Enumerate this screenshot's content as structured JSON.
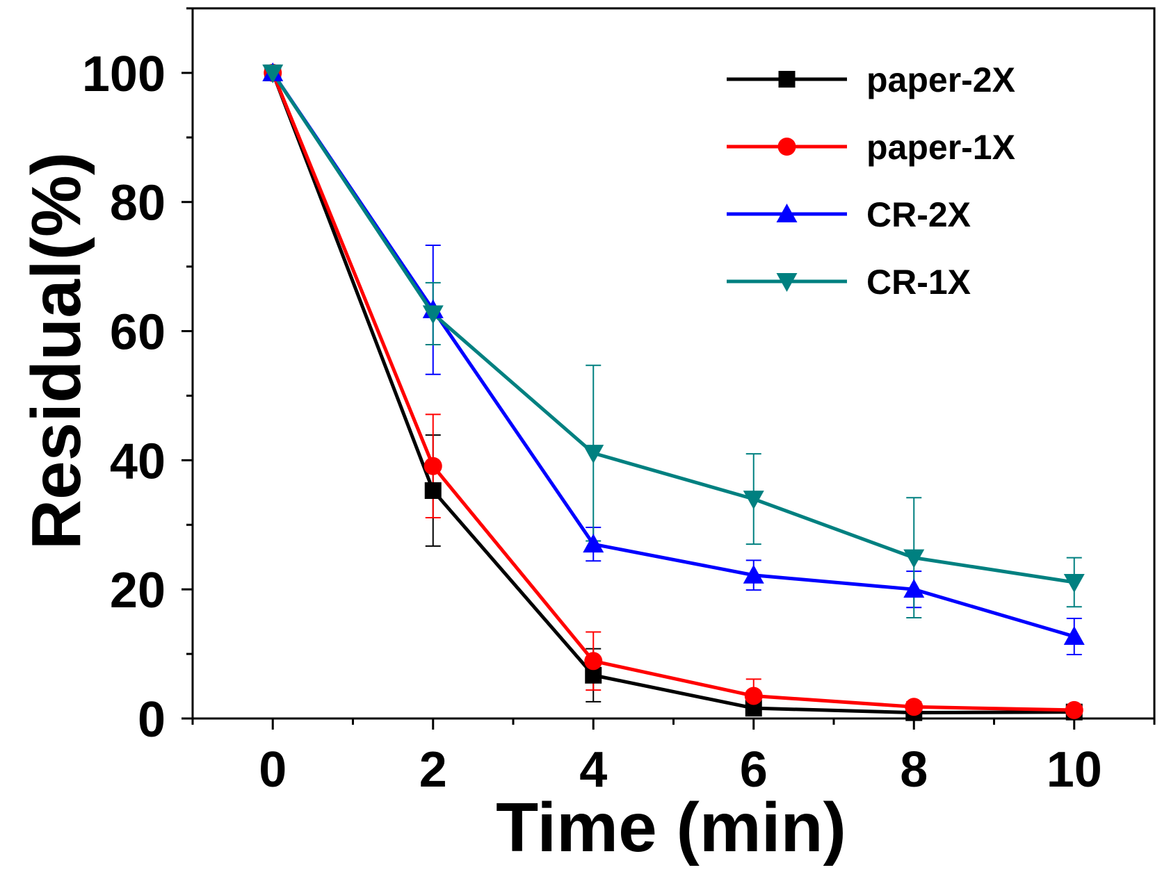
{
  "chart_data": {
    "type": "line",
    "title": "",
    "xlabel": "Time (min)",
    "ylabel": "Residual(%)",
    "xlim": [
      -1,
      11
    ],
    "ylim": [
      0,
      110
    ],
    "x_ticks": [
      0,
      2,
      4,
      6,
      8,
      10
    ],
    "x_tick_labels": [
      "0",
      "2",
      "4",
      "6",
      "8",
      "10"
    ],
    "y_ticks": [
      0,
      20,
      40,
      60,
      80,
      100
    ],
    "y_tick_labels": [
      "0",
      "20",
      "40",
      "60",
      "80",
      "100"
    ],
    "grid": false,
    "legend_position": "top-right",
    "x": [
      0,
      2,
      4,
      6,
      8,
      10
    ],
    "series": [
      {
        "name": "paper-2X",
        "color": "#000000",
        "marker": "square",
        "values": [
          100,
          35.3,
          6.7,
          1.6,
          0.9,
          1.0
        ],
        "errors": [
          0,
          8.6,
          4.1,
          0.7,
          0.4,
          0.4
        ]
      },
      {
        "name": "paper-1X",
        "color": "#ff0000",
        "marker": "circle",
        "values": [
          100,
          39.1,
          8.9,
          3.5,
          1.8,
          1.3
        ],
        "errors": [
          0,
          8.0,
          4.5,
          2.6,
          0.8,
          0.6
        ]
      },
      {
        "name": "CR-2X",
        "color": "#0000ff",
        "marker": "triangle-up",
        "values": [
          100,
          63.3,
          27.0,
          22.2,
          20.0,
          12.7
        ],
        "errors": [
          0,
          10.0,
          2.6,
          2.3,
          2.8,
          2.8
        ]
      },
      {
        "name": "CR-1X",
        "color": "#008080",
        "marker": "triangle-down",
        "values": [
          100,
          62.7,
          41.1,
          34.0,
          24.9,
          21.1
        ],
        "errors": [
          0,
          4.8,
          13.6,
          7.0,
          9.3,
          3.8
        ]
      }
    ]
  }
}
